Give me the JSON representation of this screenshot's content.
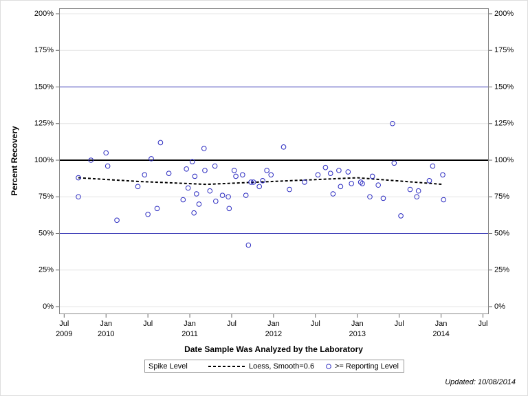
{
  "chart_data": {
    "type": "scatter",
    "xlabel": "Date Sample Was Analyzed by the Laboratory",
    "ylabel": "Percent Recovery",
    "footnote": "Updated: 10/08/2014",
    "legend_title": "Spike Level",
    "legend": "bottom",
    "grid": true,
    "xlim": [
      2009.44,
      2014.57
    ],
    "ylim": [
      0,
      200
    ],
    "xticks": [
      {
        "value": 2009.5,
        "label": "Jul"
      },
      {
        "value": 2010,
        "label": "Jan"
      },
      {
        "value": 2010.5,
        "label": "Jul"
      },
      {
        "value": 2011,
        "label": "Jan"
      },
      {
        "value": 2011.5,
        "label": "Jul"
      },
      {
        "value": 2012,
        "label": "Jan"
      },
      {
        "value": 2012.5,
        "label": "Jul"
      },
      {
        "value": 2013,
        "label": "Jan"
      },
      {
        "value": 2013.5,
        "label": "Jul"
      },
      {
        "value": 2014,
        "label": "Jan"
      },
      {
        "value": 2014.5,
        "label": "Jul"
      }
    ],
    "xtick_year_labels": [
      {
        "value": 2009.5,
        "label": "2009"
      },
      {
        "value": 2010,
        "label": "2010"
      },
      {
        "value": 2011,
        "label": "2011"
      },
      {
        "value": 2012,
        "label": "2012"
      },
      {
        "value": 2013,
        "label": "2013"
      },
      {
        "value": 2014,
        "label": "2014"
      }
    ],
    "yticks": [
      {
        "value": 0,
        "label": "0%"
      },
      {
        "value": 25,
        "label": "25%"
      },
      {
        "value": 50,
        "label": "50%"
      },
      {
        "value": 75,
        "label": "75%"
      },
      {
        "value": 100,
        "label": "100%"
      },
      {
        "value": 125,
        "label": "125%"
      },
      {
        "value": 150,
        "label": "150%"
      },
      {
        "value": 175,
        "label": "175%"
      },
      {
        "value": 200,
        "label": "200%"
      }
    ],
    "reference_lines": [
      {
        "value": 50,
        "color": "#2b2bb0",
        "width": 1
      },
      {
        "value": 150,
        "color": "#2b2bb0",
        "width": 1
      },
      {
        "value": 100,
        "color": "#000000",
        "width": 2
      }
    ],
    "series": [
      {
        "name": "Loess, Smooth=0.6",
        "kind": "line",
        "color": "#000000",
        "x": [
          2009.67,
          2010.38,
          2011.2,
          2012.0,
          2013.0,
          2014.02
        ],
        "y": [
          88,
          85.5,
          83.5,
          85.5,
          88,
          83.5
        ]
      },
      {
        "name": ">= Reporting Level",
        "kind": "scatter",
        "color": "#2a2ac0",
        "x": [
          2009.67,
          2009.67,
          2009.82,
          2010.0,
          2010.02,
          2010.13,
          2010.38,
          2010.46,
          2010.5,
          2010.54,
          2010.61,
          2010.65,
          2010.75,
          2010.92,
          2010.96,
          2010.98,
          2011.03,
          2011.05,
          2011.06,
          2011.08,
          2011.11,
          2011.17,
          2011.18,
          2011.24,
          2011.3,
          2011.31,
          2011.39,
          2011.46,
          2011.47,
          2011.53,
          2011.55,
          2011.63,
          2011.67,
          2011.7,
          2011.73,
          2011.76,
          2011.83,
          2011.87,
          2011.92,
          2011.97,
          2012.12,
          2012.19,
          2012.37,
          2012.53,
          2012.62,
          2012.68,
          2012.71,
          2012.78,
          2012.8,
          2012.89,
          2012.93,
          2013.04,
          2013.06,
          2013.15,
          2013.18,
          2013.25,
          2013.31,
          2013.42,
          2013.44,
          2013.52,
          2013.63,
          2013.71,
          2013.73,
          2013.86,
          2013.9,
          2014.02,
          2014.03
        ],
        "y": [
          88,
          75,
          100,
          105,
          96,
          59,
          82,
          90,
          63,
          101,
          67,
          112,
          91,
          73,
          94,
          81,
          99,
          64,
          89,
          77,
          70,
          108,
          93,
          79,
          96,
          72,
          76,
          75,
          67,
          93,
          89,
          90,
          76,
          42,
          85,
          85,
          82,
          86,
          93,
          90,
          109,
          80,
          85,
          90,
          95,
          91,
          77,
          93,
          82,
          92,
          84,
          85,
          84,
          75,
          89,
          83,
          74,
          125,
          98,
          62,
          80,
          75,
          79,
          86,
          96,
          90,
          73
        ]
      }
    ]
  }
}
